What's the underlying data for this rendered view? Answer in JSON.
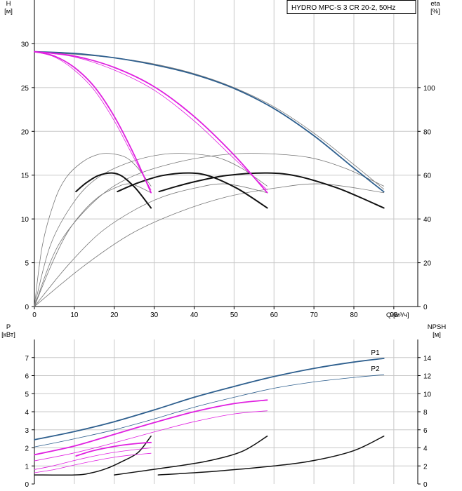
{
  "colors": {
    "grid": "#c8c8c8",
    "axis": "#000000",
    "blue": "#2e5f8e",
    "magenta": "#e020e0",
    "black": "#111111",
    "gray": "#777777",
    "label_blue": "#2a4e9a"
  },
  "chart_data": [
    {
      "type": "line",
      "title": "HYDRO MPC-S 3 CR 20-2, 50Hz",
      "xlabel": "Q [м³/ч]",
      "ylabel": "H\n[м]",
      "ylabel_right": "eta\n[%]",
      "xlim": [
        0,
        96
      ],
      "ylim": [
        0,
        35
      ],
      "ylim_right": [
        0,
        140
      ],
      "grid": true,
      "x_ticks": [
        0,
        10,
        20,
        30,
        40,
        50,
        60,
        70,
        80,
        90
      ],
      "y_ticks": [
        0,
        5,
        10,
        15,
        20,
        25,
        30
      ],
      "y_ticks_right": [
        0,
        20,
        40,
        60,
        80,
        100
      ],
      "series": [
        {
          "name": "",
          "kind": "head",
          "color": "blue",
          "width": 1.8,
          "x": [
            0,
            10,
            20,
            30,
            40,
            50,
            60,
            70,
            80,
            87.5
          ],
          "y": [
            29.1,
            28.9,
            28.4,
            27.6,
            26.5,
            24.9,
            22.6,
            19.5,
            15.8,
            13.1
          ]
        },
        {
          "name": "",
          "kind": "head-ghost",
          "color": "gray",
          "width": 0.8,
          "x": [
            0,
            10,
            20,
            30,
            40,
            50,
            60,
            70,
            80,
            87.5
          ],
          "y": [
            29.1,
            28.8,
            28.4,
            27.7,
            26.6,
            25.0,
            22.8,
            19.8,
            16.2,
            13.4
          ]
        },
        {
          "name": "",
          "kind": "head",
          "color": "magenta",
          "width": 1.8,
          "x": [
            0,
            5,
            10,
            15,
            20,
            25,
            29.2
          ],
          "y": [
            29.1,
            28.6,
            27.3,
            25.1,
            21.7,
            17.3,
            13.0
          ]
        },
        {
          "name": "",
          "kind": "head-ghost",
          "color": "magenta",
          "width": 0.8,
          "x": [
            0,
            5,
            10,
            15,
            20,
            25,
            29.2
          ],
          "y": [
            29.1,
            28.5,
            27.0,
            24.7,
            21.2,
            16.9,
            13.3
          ]
        },
        {
          "name": "",
          "kind": "head",
          "color": "magenta",
          "width": 1.8,
          "x": [
            0,
            10,
            20,
            30,
            40,
            50,
            58.3
          ],
          "y": [
            29.1,
            28.6,
            27.3,
            25.1,
            21.7,
            17.3,
            13.0
          ]
        },
        {
          "name": "",
          "kind": "head-ghost",
          "color": "magenta",
          "width": 0.8,
          "x": [
            0,
            10,
            20,
            30,
            40,
            50,
            58.3
          ],
          "y": [
            29.1,
            28.5,
            27.0,
            24.7,
            21.2,
            16.9,
            13.3
          ]
        },
        {
          "name": "",
          "kind": "eta",
          "color": "gray",
          "width": 0.8,
          "x": [
            0,
            2,
            5,
            8,
            12,
            16,
            19.4,
            23,
            26,
            29.2
          ],
          "y": [
            0,
            28,
            48,
            59,
            66,
            69.5,
            69.8,
            68,
            63,
            55
          ]
        },
        {
          "name": "",
          "kind": "eta",
          "color": "gray",
          "width": 0.8,
          "x": [
            0,
            4,
            10,
            16,
            24,
            32,
            38.9,
            46,
            52,
            58.3
          ],
          "y": [
            0,
            28,
            48,
            59,
            66,
            69.5,
            69.8,
            68,
            63,
            55
          ]
        },
        {
          "name": "",
          "kind": "eta",
          "color": "gray",
          "width": 0.8,
          "x": [
            0,
            6,
            15,
            24,
            36,
            48,
            58.3,
            69,
            78,
            87.5
          ],
          "y": [
            0,
            28,
            48,
            59,
            66,
            69.5,
            69.8,
            68,
            63,
            55
          ]
        },
        {
          "name": "",
          "kind": "eta",
          "color": "gray",
          "width": 0.8,
          "x": [
            0,
            4,
            8,
            12,
            16,
            20,
            24,
            29.2
          ],
          "y": [
            0,
            18,
            33,
            43,
            50,
            54,
            56,
            52
          ]
        },
        {
          "name": "",
          "kind": "eta",
          "color": "gray",
          "width": 0.8,
          "x": [
            0,
            8,
            16,
            24,
            32,
            40,
            48,
            58.3
          ],
          "y": [
            0,
            18,
            33,
            43,
            50,
            54,
            56,
            52
          ]
        },
        {
          "name": "",
          "kind": "eta",
          "color": "gray",
          "width": 0.8,
          "x": [
            0,
            12,
            24,
            36,
            48,
            60,
            72,
            87.5
          ],
          "y": [
            0,
            18,
            33,
            43,
            50,
            54,
            56,
            52
          ]
        },
        {
          "name": "",
          "kind": "eta-duty",
          "color": "black",
          "width": 2,
          "x": [
            10.4,
            13,
            16,
            19.4,
            22,
            25,
            27,
            29.2
          ],
          "y": [
            52.5,
            56.5,
            59.8,
            61,
            59.5,
            54.7,
            50.3,
            45
          ]
        },
        {
          "name": "",
          "kind": "eta-duty",
          "color": "black",
          "width": 2,
          "x": [
            20.8,
            26,
            32,
            38.9,
            44,
            50,
            54,
            58.3
          ],
          "y": [
            52.5,
            56.5,
            59.8,
            61,
            59.5,
            54.7,
            50.3,
            45
          ]
        },
        {
          "name": "",
          "kind": "eta-duty",
          "color": "black",
          "width": 2,
          "x": [
            31.2,
            39,
            48,
            58.3,
            66,
            75,
            81,
            87.5
          ],
          "y": [
            52.5,
            56.5,
            59.8,
            61,
            59.5,
            54.7,
            50.3,
            45
          ]
        }
      ]
    },
    {
      "type": "line",
      "xlabel": "",
      "ylabel": "P\n[кВт]",
      "ylabel_right": "NPSH\n[м]",
      "xlim": [
        0,
        96
      ],
      "ylim": [
        0,
        8
      ],
      "ylim_right": [
        0,
        16
      ],
      "grid": true,
      "y_ticks": [
        0,
        1,
        2,
        3,
        4,
        5,
        6,
        7
      ],
      "y_ticks_right": [
        0,
        2,
        4,
        6,
        8,
        10,
        12,
        14
      ],
      "series": [
        {
          "name": "P1",
          "kind": "power",
          "color": "blue",
          "width": 1.8,
          "x": [
            0,
            10,
            20,
            30,
            40,
            50,
            60,
            70,
            80,
            87.5
          ],
          "y": [
            2.45,
            2.9,
            3.45,
            4.1,
            4.8,
            5.4,
            5.95,
            6.4,
            6.75,
            6.95
          ]
        },
        {
          "name": "P2",
          "kind": "power",
          "color": "blue",
          "width": 0.8,
          "x": [
            0,
            10,
            20,
            30,
            40,
            50,
            60,
            70,
            80,
            87.5
          ],
          "y": [
            2.05,
            2.5,
            3.0,
            3.6,
            4.25,
            4.8,
            5.3,
            5.65,
            5.9,
            6.05
          ]
        },
        {
          "name": "",
          "kind": "power",
          "color": "magenta",
          "width": 1.8,
          "x": [
            0,
            10,
            20,
            30,
            40,
            50,
            58.3
          ],
          "y": [
            1.62,
            2.1,
            2.75,
            3.4,
            4.0,
            4.45,
            4.65
          ]
        },
        {
          "name": "",
          "kind": "power",
          "color": "magenta",
          "width": 0.8,
          "x": [
            0,
            10,
            20,
            30,
            40,
            50,
            58.3
          ],
          "y": [
            1.28,
            1.72,
            2.28,
            2.88,
            3.45,
            3.88,
            4.05
          ]
        },
        {
          "name": "",
          "kind": "power",
          "color": "magenta",
          "width": 1.8,
          "x": [
            10.4,
            14,
            18,
            22,
            26,
            29.2
          ],
          "y": [
            1.55,
            1.8,
            2.0,
            2.15,
            2.25,
            2.3
          ]
        },
        {
          "name": "",
          "kind": "power",
          "color": "magenta",
          "width": 0.8,
          "x": [
            0,
            5,
            10,
            15,
            20,
            25,
            29.2
          ],
          "y": [
            0.8,
            1.02,
            1.3,
            1.55,
            1.75,
            1.9,
            2.0
          ]
        },
        {
          "name": "",
          "kind": "power",
          "color": "magenta",
          "width": 0.8,
          "x": [
            0,
            5,
            10,
            15,
            20,
            25,
            29.2
          ],
          "y": [
            0.62,
            0.8,
            1.05,
            1.28,
            1.48,
            1.62,
            1.7
          ]
        },
        {
          "name": "",
          "kind": "npsh",
          "color": "black",
          "width": 1.5,
          "x": [
            0,
            10,
            14,
            18,
            22,
            26,
            29.2
          ],
          "y": [
            1,
            1,
            1.2,
            1.7,
            2.5,
            3.5,
            5.3
          ]
        },
        {
          "name": "",
          "kind": "npsh",
          "color": "black",
          "width": 1.5,
          "x": [
            20,
            28,
            36,
            44,
            52,
            58.3
          ],
          "y": [
            1,
            1.5,
            2,
            2.6,
            3.6,
            5.3
          ]
        },
        {
          "name": "",
          "kind": "npsh",
          "color": "black",
          "width": 1.5,
          "x": [
            31,
            45,
            60,
            70,
            80,
            87.5
          ],
          "y": [
            1,
            1.4,
            2,
            2.6,
            3.7,
            5.3
          ]
        }
      ]
    }
  ]
}
